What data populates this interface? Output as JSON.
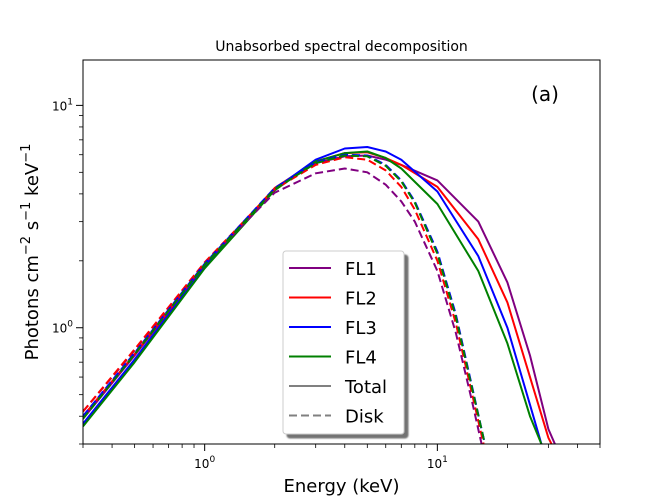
{
  "chart_data": {
    "type": "line",
    "title": "Unabsorbed spectral decomposition",
    "xlabel": "Energy (keV)",
    "ylabel": "Photons cm",
    "ylabel_parts": {
      "base": "Photons cm",
      "exp1": "−2",
      "mid1": " s",
      "exp2": "−1",
      "mid2": " keV",
      "exp3": "−1"
    },
    "annotation": "(a)",
    "x_scale": "log",
    "y_scale": "log",
    "xlim": [
      0.3,
      50
    ],
    "ylim": [
      0.3,
      16
    ],
    "x_ticks": [
      {
        "value": 1,
        "base": "10",
        "exp": "0"
      },
      {
        "value": 10,
        "base": "10",
        "exp": "1"
      }
    ],
    "y_ticks": [
      {
        "value": 1,
        "base": "10",
        "exp": "0"
      },
      {
        "value": 10,
        "base": "10",
        "exp": "1"
      }
    ],
    "legend_position": "lower-center",
    "legend": [
      {
        "label": "FL1",
        "color": "#800080",
        "style": "solid"
      },
      {
        "label": "FL2",
        "color": "#ff0000",
        "style": "solid"
      },
      {
        "label": "FL3",
        "color": "#0000ff",
        "style": "solid"
      },
      {
        "label": "FL4",
        "color": "#008000",
        "style": "solid"
      },
      {
        "label": "Total",
        "color": "#808080",
        "style": "solid"
      },
      {
        "label": "Disk",
        "color": "#808080",
        "style": "dashed"
      }
    ],
    "series": [
      {
        "name": "FL1",
        "kind": "Total",
        "color": "#800080",
        "dash": false,
        "x": [
          0.3,
          0.5,
          1,
          2,
          3,
          4,
          5,
          6,
          7,
          10,
          15,
          20,
          25,
          30,
          32
        ],
        "y": [
          0.39,
          0.75,
          1.9,
          4.2,
          5.5,
          5.9,
          5.95,
          5.7,
          5.4,
          4.6,
          3.0,
          1.6,
          0.75,
          0.35,
          0.3
        ]
      },
      {
        "name": "FL2",
        "kind": "Total",
        "color": "#ff0000",
        "dash": false,
        "x": [
          0.3,
          0.5,
          1,
          2,
          3,
          4,
          5,
          6,
          7,
          10,
          15,
          20,
          25,
          30,
          32
        ],
        "y": [
          0.4,
          0.76,
          1.92,
          4.25,
          5.6,
          6.1,
          6.15,
          5.8,
          5.4,
          4.3,
          2.5,
          1.3,
          0.6,
          0.32,
          0.28
        ]
      },
      {
        "name": "FL3",
        "kind": "Total",
        "color": "#0000ff",
        "dash": false,
        "x": [
          0.3,
          0.5,
          1,
          2,
          3,
          4,
          5,
          6,
          7,
          10,
          15,
          20,
          25,
          28,
          30
        ],
        "y": [
          0.37,
          0.72,
          1.88,
          4.2,
          5.7,
          6.4,
          6.5,
          6.2,
          5.7,
          4.1,
          2.1,
          1.0,
          0.45,
          0.3,
          0.27
        ]
      },
      {
        "name": "FL4",
        "kind": "Total",
        "color": "#008000",
        "dash": false,
        "x": [
          0.3,
          0.5,
          1,
          2,
          3,
          4,
          5,
          6,
          7,
          10,
          15,
          20,
          25,
          28
        ],
        "y": [
          0.36,
          0.7,
          1.85,
          4.15,
          5.6,
          6.1,
          6.2,
          5.8,
          5.2,
          3.6,
          1.8,
          0.85,
          0.4,
          0.3
        ]
      },
      {
        "name": "FL1",
        "kind": "Disk",
        "color": "#800080",
        "dash": true,
        "x": [
          0.3,
          0.5,
          1,
          2,
          3,
          4,
          5,
          6,
          7,
          8,
          10,
          12,
          14,
          15.5
        ],
        "y": [
          0.42,
          0.79,
          1.95,
          4.05,
          4.95,
          5.2,
          5.0,
          4.4,
          3.7,
          3.0,
          1.8,
          0.95,
          0.48,
          0.3
        ]
      },
      {
        "name": "FL2",
        "kind": "Disk",
        "color": "#ff0000",
        "dash": true,
        "x": [
          0.3,
          0.5,
          1,
          2,
          3,
          4,
          5,
          6,
          7,
          8,
          10,
          12,
          14,
          15.8
        ],
        "y": [
          0.42,
          0.8,
          1.97,
          4.2,
          5.4,
          5.85,
          5.7,
          5.1,
          4.3,
          3.4,
          2.0,
          1.05,
          0.52,
          0.3
        ]
      },
      {
        "name": "FL3",
        "kind": "Disk",
        "color": "#0000ff",
        "dash": true,
        "x": [
          0.3,
          0.5,
          1,
          2,
          3,
          4,
          5,
          6,
          7,
          8,
          10,
          12,
          14,
          16
        ],
        "y": [
          0.4,
          0.77,
          1.94,
          4.25,
          5.55,
          6.0,
          5.95,
          5.4,
          4.6,
          3.7,
          2.2,
          1.15,
          0.56,
          0.3
        ]
      },
      {
        "name": "FL4",
        "kind": "Disk",
        "color": "#008000",
        "dash": true,
        "x": [
          0.3,
          0.5,
          1,
          2,
          3,
          4,
          5,
          6,
          7,
          8,
          10,
          12,
          14,
          16
        ],
        "y": [
          0.39,
          0.76,
          1.92,
          4.2,
          5.5,
          5.95,
          5.9,
          5.35,
          4.55,
          3.65,
          2.15,
          1.12,
          0.55,
          0.3
        ]
      }
    ]
  }
}
